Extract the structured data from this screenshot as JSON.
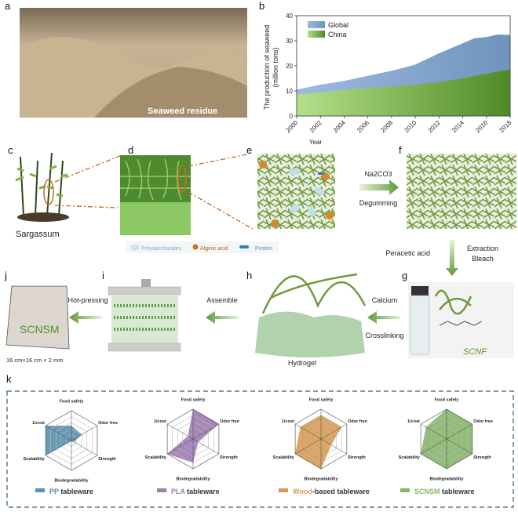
{
  "panels": {
    "a": "a",
    "b": "b",
    "c": "c",
    "d": "d",
    "e": "e",
    "f": "f",
    "g": "g",
    "h": "h",
    "i": "i",
    "j": "j",
    "k": "k"
  },
  "photo": {
    "caption": "Seaweed residue"
  },
  "plant": {
    "caption": "Sargassum"
  },
  "step_degum": {
    "top": "Na2CO3",
    "bottom": "Degumming"
  },
  "legend_e": {
    "items": [
      "Polysaccharides",
      "Alginic acid",
      "Protein"
    ]
  },
  "step_bleach": {
    "left": "Peracetic acid",
    "right_top": "Extraction",
    "right_bottom": "Bleach"
  },
  "step_crosslink": {
    "top": "Calcium",
    "bottom": "Crosslinking"
  },
  "step_assemble": {
    "label": "Assemble"
  },
  "step_press": {
    "label": "Hot-pressing"
  },
  "hydrogel": {
    "caption": "Hydrogel"
  },
  "scnf": {
    "label": "SCNF"
  },
  "sheet": {
    "label": "SCNSM",
    "size": "16 cm×16 cm × 2 mm"
  },
  "chart_data": {
    "type": "area",
    "xlabel": "Year",
    "ylabel": "The production of seaweed (million tons)",
    "xlim": [
      2000,
      2018
    ],
    "ylim": [
      0,
      40
    ],
    "xticks": [
      "2000",
      "2002",
      "2004",
      "2006",
      "2008",
      "2010",
      "2012",
      "2014",
      "2016",
      "2018"
    ],
    "yticks": [
      "0",
      "10",
      "20",
      "30",
      "40"
    ],
    "legend_position": "top-left",
    "x": [
      2000,
      2002,
      2004,
      2006,
      2008,
      2010,
      2012,
      2014,
      2015,
      2016,
      2017,
      2018
    ],
    "series": [
      {
        "name": "Global",
        "color": "#7fa3cc",
        "values": [
          10.5,
          12.5,
          14,
          16,
          18,
          20.5,
          25,
          29,
          31,
          31.5,
          32.5,
          32.3
        ]
      },
      {
        "name": "China",
        "color": "#6aa83c",
        "values": [
          8.5,
          9.5,
          10.5,
          11.2,
          11.8,
          12.5,
          13.5,
          15,
          16,
          16.8,
          17.8,
          18.5
        ]
      }
    ]
  },
  "radar": {
    "axes": [
      "Food safety",
      "Odor free",
      "Strength",
      "Biodegradability",
      "Scalability",
      "1/cost"
    ],
    "levels": 5,
    "charts": [
      {
        "prefix": "PP",
        "suffix": " tableware",
        "color": "#5b8fae",
        "values": [
          0.5,
          0.4,
          0.1,
          0.0,
          1.0,
          1.0
        ]
      },
      {
        "prefix": "PLA",
        "suffix": " tableware",
        "color": "#9b7bb0",
        "values": [
          1.0,
          1.0,
          0.2,
          0.8,
          1.0,
          0.2
        ]
      },
      {
        "prefix": "Wood",
        "suffix": "-based tableware",
        "color": "#d79a52",
        "values": [
          0.8,
          0.8,
          0.4,
          1.0,
          1.0,
          0.8
        ]
      },
      {
        "prefix": "SCNSM",
        "suffix": " tableware",
        "color": "#86b56a",
        "values": [
          1.0,
          1.0,
          1.0,
          1.0,
          1.0,
          0.8
        ]
      }
    ]
  }
}
